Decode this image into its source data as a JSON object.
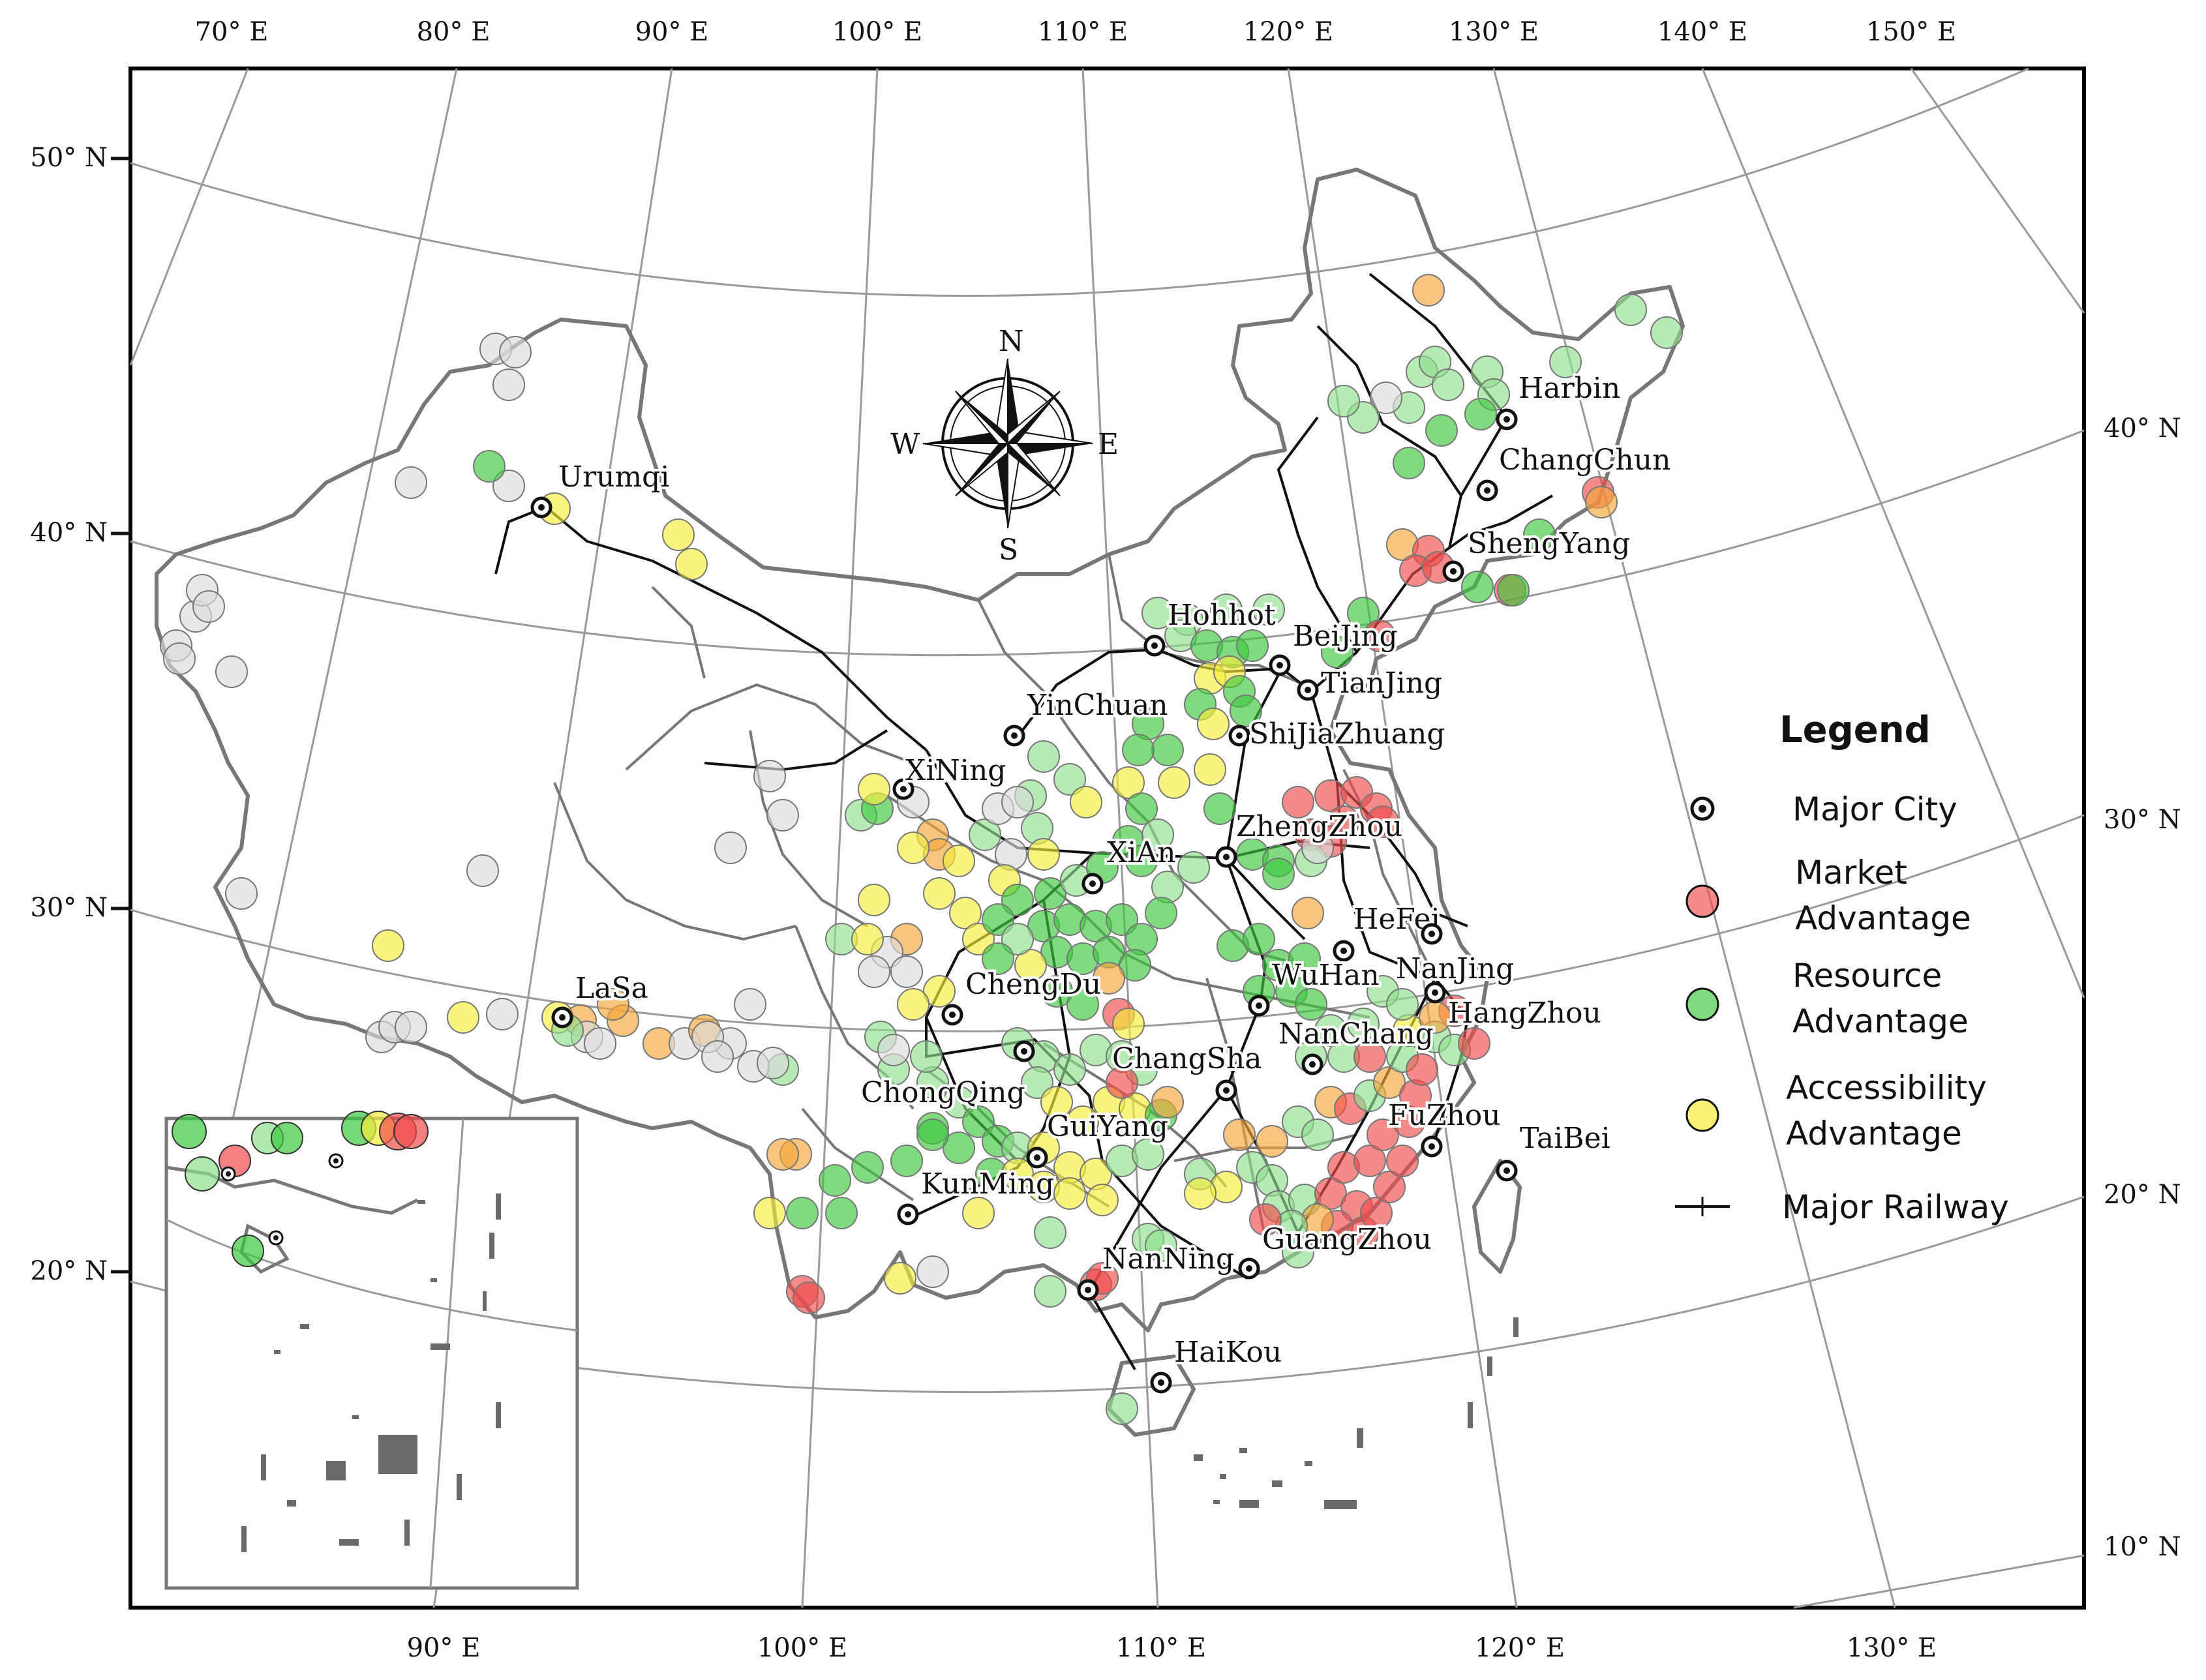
{
  "map": {
    "top_longitude_labels": [
      "70° E",
      "80° E",
      "90° E",
      "100° E",
      "110° E",
      "120° E",
      "130° E",
      "140° E",
      "150° E"
    ],
    "bottom_longitude_labels": [
      "90° E",
      "100° E",
      "110° E",
      "120° E",
      "130° E"
    ],
    "left_latitude_labels": [
      "50° N",
      "40° N",
      "30° N",
      "20° N"
    ],
    "right_latitude_labels": [
      "40° N",
      "30° N",
      "20° N",
      "10° N"
    ],
    "compass": {
      "n": "N",
      "s": "S",
      "e": "E",
      "w": "W"
    },
    "cities": [
      "Harbin",
      "ChangChun",
      "ShengYang",
      "Urumqi",
      "Hohhot",
      "BeiJing",
      "TianJing",
      "YinChuan",
      "ShiJiaZhuang",
      "XiNing",
      "ZhengZhou",
      "XiAn",
      "HeFei",
      "NanJing",
      "LaSa",
      "ChengDu",
      "WuHan",
      "HangZhou",
      "NanChang",
      "ChongQing",
      "ChangSha",
      "GuiYang",
      "FuZhou",
      "TaiBei",
      "KunMing",
      "GuangZhou",
      "NanNing",
      "HaiKou"
    ],
    "legend": {
      "title": "Legend",
      "major_city": "Major City",
      "market_1": "Market",
      "market_2": "Advantage",
      "resource_1": "Resource",
      "resource_2": "Advantage",
      "access_1": "Accessibility",
      "access_2": "Advantage",
      "railway": "Major Railway"
    },
    "colors": {
      "market": "#f04b4b",
      "resource": "#3cc83c",
      "resource_light": "#8fe08f",
      "accessibility": "#f5ee3a",
      "mixed_orange": "#f5a63a",
      "neutral": "#dcdcdc",
      "border": "#777777",
      "railway": "#111111"
    }
  }
}
